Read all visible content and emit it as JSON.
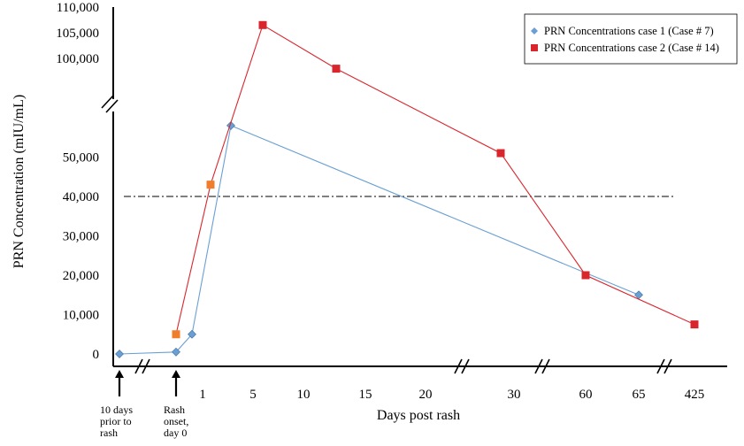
{
  "chart_data": {
    "type": "line",
    "xlabel": "Days post rash",
    "ylabel": "PRN Concentration (mIU/mL)",
    "x_tick_labels": [
      "1",
      "5",
      "10",
      "15",
      "20",
      "30",
      "60",
      "65",
      "425"
    ],
    "y_tick_labels_lower": [
      "0",
      "10,000",
      "20,000",
      "30,000",
      "40,000",
      "50,000"
    ],
    "y_tick_labels_upper": [
      "100,000",
      "105,000",
      "110,000"
    ],
    "y_break_lower": 60000,
    "y_break_upper": 95000,
    "reference_line": {
      "y": 40000,
      "style": "dash-dot"
    },
    "annotations": [
      {
        "at_x_day": -10,
        "lines": [
          "10 days",
          "prior to",
          "rash"
        ]
      },
      {
        "at_x_day": 0,
        "lines": [
          "Rash",
          "onset,",
          "day 0"
        ]
      }
    ],
    "legend": {
      "placement": "top-right"
    },
    "series": [
      {
        "name": "PRN Concentrations case 1 (Case # 7)",
        "color": "#6a9fd4",
        "marker": "diamond",
        "points": [
          {
            "x": -10,
            "y": 0
          },
          {
            "x": 0,
            "y": 500
          },
          {
            "x": 0.5,
            "y": 5000
          },
          {
            "x": 3.5,
            "y": 58000
          },
          {
            "x": 65,
            "y": 15000
          }
        ]
      },
      {
        "name": "PRN Concentrations case 2 (Case # 14)",
        "color": "#d9262d",
        "marker": "square",
        "points": [
          {
            "x": 0,
            "y": 5000
          },
          {
            "x": 1.5,
            "y": 43000
          },
          {
            "x": 6,
            "y": 106500
          },
          {
            "x": 13,
            "y": 98000
          },
          {
            "x": 29,
            "y": 51000
          },
          {
            "x": 60,
            "y": 20000
          },
          {
            "x": 425,
            "y": 7500
          }
        ]
      }
    ]
  }
}
